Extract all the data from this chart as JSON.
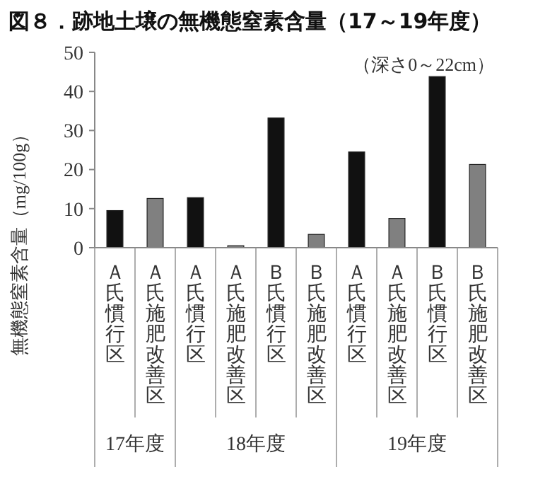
{
  "chart_data": {
    "type": "bar",
    "title": "図８．跡地土壌の無機態窒素含量（17～19年度）",
    "ylabel": "無機態窒素含量（mg/100g）",
    "categories": [
      "Ａ氏慣行区",
      "Ａ氏施肥改善区",
      "Ａ氏慣行区",
      "Ａ氏施肥改善区",
      "Ｂ氏慣行区",
      "Ｂ氏施肥改善区",
      "Ａ氏慣行区",
      "Ａ氏施肥改善区",
      "Ｂ氏慣行区",
      "Ｂ氏施肥改善区"
    ],
    "values": [
      9.5,
      12.6,
      12.8,
      0.5,
      33.2,
      3.4,
      24.5,
      7.5,
      43.8,
      21.3
    ],
    "colors": [
      "#111111",
      "#808080",
      "#111111",
      "#808080",
      "#111111",
      "#808080",
      "#111111",
      "#808080",
      "#111111",
      "#808080"
    ],
    "ylim": [
      0,
      50
    ],
    "yticks": [
      0,
      10,
      20,
      30,
      40,
      50
    ],
    "grid": false,
    "legend": false,
    "annotations": [
      "（深さ0～22cm）",
      "17年度",
      "18年度",
      "19年度"
    ]
  }
}
